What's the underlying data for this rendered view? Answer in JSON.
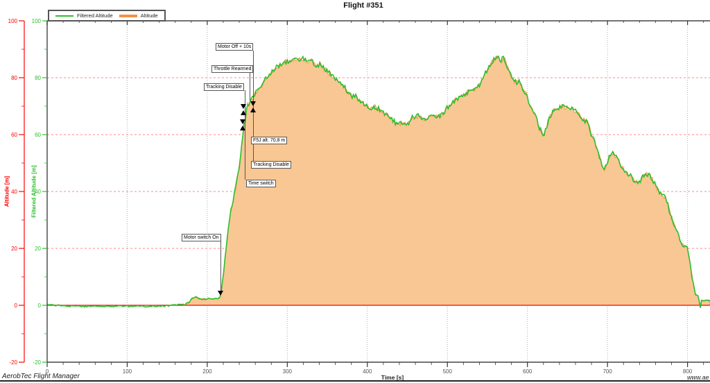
{
  "title": "Flight #351",
  "legend": {
    "items": [
      {
        "label": "Filtered Altitude",
        "color": "#2EBE2E"
      },
      {
        "label": "Altitude",
        "color": "#F2914A"
      }
    ]
  },
  "axes": {
    "x": {
      "label": "Time [s]",
      "ticks": [
        0,
        100,
        200,
        300,
        400,
        500,
        600,
        700,
        800
      ],
      "minor_step": 20,
      "range": [
        0,
        828
      ]
    },
    "y_red": {
      "label": "Altitude [m]",
      "color": "#FF0000",
      "ticks": [
        -20,
        0,
        20,
        40,
        60,
        80,
        100
      ],
      "minor_step": 10,
      "range": [
        -20,
        100
      ]
    },
    "y_green": {
      "label": "Filtered Altitude [m]",
      "color": "#2EBE2E",
      "ticks": [
        -20,
        0,
        20,
        40,
        60,
        80,
        100
      ],
      "minor_step": 10,
      "range": [
        -20,
        100
      ]
    }
  },
  "annotations": [
    {
      "label": "Motor Off + 10s",
      "t": 257,
      "alt": 71.5
    },
    {
      "label": "Throttle Rearmed",
      "t": 256,
      "alt": 71
    },
    {
      "label": "Tracking Disable",
      "t": 247,
      "alt": 70
    },
    {
      "label": "F5J alt. 70,8 m",
      "t": 250.5,
      "alt": 70.8
    },
    {
      "label": "Tracking Disable",
      "t": 246,
      "alt": 64
    },
    {
      "label": "Time switch",
      "t": 245,
      "alt": 63.4
    },
    {
      "label": "Motor switch On",
      "t": 216,
      "alt": 3
    }
  ],
  "footer": {
    "left": "AerobTec Flight Manager",
    "right": "www.ae"
  },
  "colors": {
    "filtered_line": "#2EBE2E",
    "altitude_line": "#F2914A",
    "altitude_fill": "#F9C794",
    "red_axis": "#FF0000",
    "red_grid": "#FF8888",
    "gray_grid": "#B0B0B0",
    "plot_border": "#444444",
    "tick_label": "#555555"
  },
  "chart_data": {
    "type": "area",
    "title": "Flight #351",
    "xlabel": "Time [s]",
    "ylabel_left": "Altitude [m]",
    "ylabel_right": "Filtered Altitude [m]",
    "xlim": [
      0,
      828
    ],
    "ylim": [
      -20,
      100
    ],
    "x_gridlines": [
      100,
      200,
      300,
      400,
      500,
      600,
      700,
      800
    ],
    "y_gridlines_red_dashed": [
      20,
      40,
      60,
      80
    ],
    "zero_line": 0,
    "legend_position": "top-left",
    "series": [
      {
        "name": "Filtered Altitude",
        "style": "line",
        "color": "#2EBE2E",
        "points": [
          [
            0,
            0.2
          ],
          [
            12,
            0
          ],
          [
            25,
            -0.3
          ],
          [
            45,
            -0.4
          ],
          [
            65,
            -0.25
          ],
          [
            85,
            -0.4
          ],
          [
            105,
            -0.3
          ],
          [
            125,
            -0.4
          ],
          [
            145,
            -0.15
          ],
          [
            160,
            0
          ],
          [
            172,
            0.3
          ],
          [
            177,
            1
          ],
          [
            181,
            2.4
          ],
          [
            186,
            2.8
          ],
          [
            191,
            2.3
          ],
          [
            197,
            2.1
          ],
          [
            203,
            2.4
          ],
          [
            209,
            2.2
          ],
          [
            214,
            2.5
          ],
          [
            216,
            3
          ],
          [
            218,
            6
          ],
          [
            221,
            13
          ],
          [
            224,
            21
          ],
          [
            227,
            28
          ],
          [
            230,
            34
          ],
          [
            233,
            38
          ],
          [
            236,
            42
          ],
          [
            239,
            47
          ],
          [
            241,
            51
          ],
          [
            243,
            56
          ],
          [
            245,
            61
          ],
          [
            246,
            63.5
          ],
          [
            247,
            62.5
          ],
          [
            248,
            66
          ],
          [
            249.5,
            69.5
          ],
          [
            250.5,
            70.8
          ],
          [
            252,
            70.2
          ],
          [
            254,
            71.5
          ],
          [
            256,
            72.5
          ],
          [
            260,
            74.5
          ],
          [
            265,
            76.5
          ],
          [
            270,
            78.5
          ],
          [
            276,
            80.5
          ],
          [
            282,
            82.5
          ],
          [
            288,
            84
          ],
          [
            294,
            85
          ],
          [
            300,
            85.8
          ],
          [
            306,
            86
          ],
          [
            310,
            86.5
          ],
          [
            313,
            87
          ],
          [
            317,
            86.2
          ],
          [
            321,
            86.8
          ],
          [
            325,
            85.8
          ],
          [
            329,
            86.2
          ],
          [
            333,
            85
          ],
          [
            337,
            84.2
          ],
          [
            341,
            84.8
          ],
          [
            345,
            83.5
          ],
          [
            349,
            82.5
          ],
          [
            353,
            81.5
          ],
          [
            357,
            80.5
          ],
          [
            361,
            79.5
          ],
          [
            365,
            78.8
          ],
          [
            369,
            78
          ],
          [
            373,
            76
          ],
          [
            377,
            74.5
          ],
          [
            381,
            73.5
          ],
          [
            385,
            73.8
          ],
          [
            389,
            72.5
          ],
          [
            393,
            71.5
          ],
          [
            397,
            70.5
          ],
          [
            401,
            70
          ],
          [
            405,
            69.3
          ],
          [
            409,
            69.8
          ],
          [
            413,
            69.2
          ],
          [
            417,
            68.5
          ],
          [
            421,
            67.5
          ],
          [
            425,
            66.8
          ],
          [
            429,
            65.8
          ],
          [
            433,
            64.8
          ],
          [
            437,
            63.6
          ],
          [
            441,
            63.9
          ],
          [
            445,
            64.3
          ],
          [
            449,
            63.5
          ],
          [
            453,
            64.5
          ],
          [
            457,
            66.5
          ],
          [
            460,
            65.5
          ],
          [
            463,
            66.8
          ],
          [
            467,
            66
          ],
          [
            471,
            65.5
          ],
          [
            475,
            66.2
          ],
          [
            478,
            66
          ],
          [
            484,
            66.5
          ],
          [
            489,
            66.3
          ],
          [
            495,
            67.5
          ],
          [
            500,
            69.5
          ],
          [
            505,
            70.8
          ],
          [
            511,
            72.5
          ],
          [
            516,
            73.5
          ],
          [
            521,
            74.3
          ],
          [
            527,
            75
          ],
          [
            533,
            75.8
          ],
          [
            540,
            77.5
          ],
          [
            545,
            80
          ],
          [
            550,
            83
          ],
          [
            555,
            85.2
          ],
          [
            560,
            86.8
          ],
          [
            564,
            87
          ],
          [
            567,
            86.2
          ],
          [
            571,
            87
          ],
          [
            574,
            84.5
          ],
          [
            578,
            81.5
          ],
          [
            582,
            79.3
          ],
          [
            586,
            78.3
          ],
          [
            590,
            78.6
          ],
          [
            594,
            76
          ],
          [
            599,
            74
          ],
          [
            603,
            70.5
          ],
          [
            607,
            67.8
          ],
          [
            611,
            65.8
          ],
          [
            615,
            62.5
          ],
          [
            619,
            60.3
          ],
          [
            621,
            59.8
          ],
          [
            625,
            64
          ],
          [
            629,
            67
          ],
          [
            633,
            68.6
          ],
          [
            637,
            69
          ],
          [
            641,
            69.8
          ],
          [
            645,
            70
          ],
          [
            649,
            69.3
          ],
          [
            653,
            69.8
          ],
          [
            657,
            68.8
          ],
          [
            661,
            68.3
          ],
          [
            666,
            66.6
          ],
          [
            671,
            65
          ],
          [
            676,
            64.2
          ],
          [
            680,
            59.5
          ],
          [
            684,
            57.5
          ],
          [
            688,
            54
          ],
          [
            692,
            50.5
          ],
          [
            696,
            48
          ],
          [
            699,
            49.5
          ],
          [
            703,
            52.8
          ],
          [
            707,
            53.3
          ],
          [
            711,
            52
          ],
          [
            715,
            50.5
          ],
          [
            718,
            48.5
          ],
          [
            721,
            47.5
          ],
          [
            725,
            46.3
          ],
          [
            729,
            45.5
          ],
          [
            733,
            44
          ],
          [
            737,
            43
          ],
          [
            741,
            44
          ],
          [
            745,
            45.5
          ],
          [
            749,
            46.2
          ],
          [
            753,
            45.8
          ],
          [
            757,
            44
          ],
          [
            761,
            41.5
          ],
          [
            765,
            39.5
          ],
          [
            769,
            38.5
          ],
          [
            772,
            38
          ],
          [
            775,
            36
          ],
          [
            778,
            32.5
          ],
          [
            781,
            29.5
          ],
          [
            784,
            27.5
          ],
          [
            787,
            26
          ],
          [
            790,
            23.5
          ],
          [
            793,
            21
          ],
          [
            796,
            20.5
          ],
          [
            798,
            21.2
          ],
          [
            800,
            19.5
          ],
          [
            802,
            17
          ],
          [
            804,
            13.5
          ],
          [
            806,
            9.5
          ],
          [
            808,
            5.5
          ],
          [
            810,
            3.8
          ],
          [
            812,
            3.3
          ],
          [
            814,
            3.0
          ],
          [
            815,
            0.5
          ],
          [
            815.8,
            -1.8
          ],
          [
            816.5,
            0.9
          ],
          [
            817.5,
            1.7
          ],
          [
            820,
            1.6
          ],
          [
            823,
            1.7
          ],
          [
            827,
            1.6
          ]
        ]
      },
      {
        "name": "Altitude",
        "style": "filled-area",
        "color": "#F2914A",
        "fill": "#F9C794",
        "note": "raw altitude, visually coincident with Filtered Altitude; filled to 0 m"
      }
    ]
  }
}
